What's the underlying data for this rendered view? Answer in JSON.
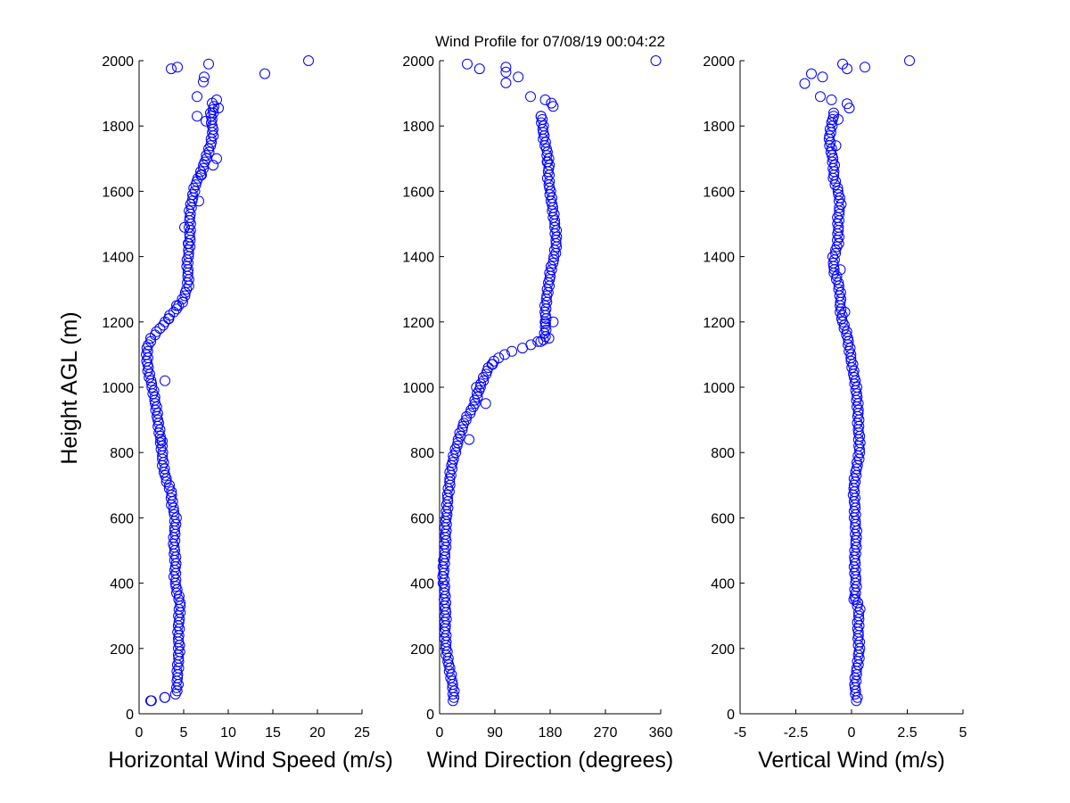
{
  "title": "Wind Profile for  07/08/19 00:04:22",
  "ylabel": "Height AGL (m)",
  "marker_color": "#0000ff",
  "axis_color": "#000000",
  "chart_data": [
    {
      "type": "scatter",
      "xlabel": "Horizontal Wind Speed (m/s)",
      "ylabel": "Height AGL (m)",
      "xlim": [
        0,
        25
      ],
      "ylim": [
        0,
        2000
      ],
      "xticks": [
        0,
        5,
        10,
        15,
        20,
        25
      ],
      "xtick_labels": [
        "0",
        "5",
        "10",
        "15",
        "20",
        "25"
      ],
      "yticks": [
        0,
        200,
        400,
        600,
        800,
        1000,
        1200,
        1400,
        1600,
        1800,
        2000
      ],
      "ytick_labels": [
        "0",
        "200",
        "400",
        "600",
        "800",
        "1000",
        "1200",
        "1400",
        "1600",
        "1800",
        "2000"
      ],
      "profile": [
        [
          40,
          1.3
        ],
        [
          50,
          2.9
        ],
        [
          60,
          4.1
        ],
        [
          80,
          4.3
        ],
        [
          120,
          4.3
        ],
        [
          160,
          4.4
        ],
        [
          200,
          4.5
        ],
        [
          240,
          4.4
        ],
        [
          300,
          4.5
        ],
        [
          340,
          4.6
        ],
        [
          380,
          4.2
        ],
        [
          420,
          4.0
        ],
        [
          460,
          4.1
        ],
        [
          520,
          3.9
        ],
        [
          560,
          4.0
        ],
        [
          600,
          4.1
        ],
        [
          640,
          3.7
        ],
        [
          680,
          3.6
        ],
        [
          720,
          3.0
        ],
        [
          760,
          2.7
        ],
        [
          800,
          2.6
        ],
        [
          840,
          2.4
        ],
        [
          880,
          2.2
        ],
        [
          940,
          1.9
        ],
        [
          1000,
          1.5
        ],
        [
          1040,
          1.1
        ],
        [
          1080,
          0.9
        ],
        [
          1120,
          0.9
        ],
        [
          1150,
          1.4
        ],
        [
          1170,
          2.0
        ],
        [
          1200,
          3.0
        ],
        [
          1220,
          3.5
        ],
        [
          1240,
          4.2
        ],
        [
          1260,
          4.8
        ],
        [
          1290,
          5.2
        ],
        [
          1310,
          5.5
        ],
        [
          1340,
          5.5
        ],
        [
          1380,
          5.4
        ],
        [
          1420,
          5.6
        ],
        [
          1460,
          5.7
        ],
        [
          1500,
          5.7
        ],
        [
          1540,
          5.7
        ],
        [
          1580,
          6.0
        ],
        [
          1620,
          6.3
        ],
        [
          1660,
          7.0
        ],
        [
          1700,
          7.5
        ],
        [
          1740,
          8.0
        ],
        [
          1780,
          8.3
        ],
        [
          1820,
          8.1
        ],
        [
          1860,
          8.4
        ]
      ],
      "points": [
        [
          1.3,
          40
        ],
        [
          2.9,
          50
        ],
        [
          6.5,
          1830
        ],
        [
          7.5,
          1815
        ],
        [
          8.0,
          1840
        ],
        [
          6.5,
          1890
        ],
        [
          7.2,
          1935
        ],
        [
          7.3,
          1950
        ],
        [
          7.8,
          1990
        ],
        [
          3.6,
          1975
        ],
        [
          4.3,
          1980
        ],
        [
          14.1,
          1960
        ],
        [
          19.0,
          2000
        ],
        [
          8.2,
          1870
        ],
        [
          8.9,
          1855
        ],
        [
          8.7,
          1880
        ],
        [
          8.7,
          1700
        ],
        [
          8.3,
          1680
        ],
        [
          7.0,
          1650
        ],
        [
          6.7,
          1570
        ],
        [
          5.5,
          1440
        ],
        [
          5.1,
          1490
        ],
        [
          4.2,
          1250
        ],
        [
          3.3,
          1210
        ],
        [
          2.9,
          1020
        ],
        [
          2.6,
          835
        ]
      ]
    },
    {
      "type": "scatter",
      "xlabel": "Wind Direction (degrees)",
      "ylabel": "",
      "xlim": [
        0,
        360
      ],
      "ylim": [
        0,
        2000
      ],
      "xticks": [
        0,
        90,
        180,
        270,
        360
      ],
      "xtick_labels": [
        "0",
        "90",
        "180",
        "270",
        "360"
      ],
      "yticks": [
        0,
        200,
        400,
        600,
        800,
        1000,
        1200,
        1400,
        1600,
        1800,
        2000
      ],
      "ytick_labels": [
        "0",
        "200",
        "400",
        "600",
        "800",
        "1000",
        "1200",
        "1400",
        "1600",
        "1800",
        "2000"
      ],
      "profile": [
        [
          40,
          22
        ],
        [
          60,
          23
        ],
        [
          80,
          22
        ],
        [
          100,
          20
        ],
        [
          140,
          16
        ],
        [
          180,
          12
        ],
        [
          220,
          10
        ],
        [
          260,
          9
        ],
        [
          300,
          10
        ],
        [
          340,
          9
        ],
        [
          380,
          8
        ],
        [
          420,
          6
        ],
        [
          460,
          7
        ],
        [
          500,
          9
        ],
        [
          540,
          10
        ],
        [
          580,
          10
        ],
        [
          620,
          12
        ],
        [
          660,
          13
        ],
        [
          700,
          16
        ],
        [
          740,
          18
        ],
        [
          780,
          22
        ],
        [
          820,
          28
        ],
        [
          860,
          34
        ],
        [
          900,
          42
        ],
        [
          940,
          55
        ],
        [
          980,
          62
        ],
        [
          1020,
          70
        ],
        [
          1060,
          80
        ],
        [
          1090,
          95
        ],
        [
          1110,
          118
        ],
        [
          1130,
          150
        ],
        [
          1145,
          170
        ],
        [
          1165,
          172
        ],
        [
          1200,
          173
        ],
        [
          1240,
          172
        ],
        [
          1280,
          175
        ],
        [
          1320,
          178
        ],
        [
          1360,
          181
        ],
        [
          1400,
          187
        ],
        [
          1440,
          190
        ],
        [
          1480,
          189
        ],
        [
          1520,
          186
        ],
        [
          1560,
          183
        ],
        [
          1600,
          180
        ],
        [
          1640,
          177
        ],
        [
          1680,
          178
        ],
        [
          1720,
          175
        ],
        [
          1760,
          170
        ],
        [
          1800,
          168
        ],
        [
          1830,
          165
        ]
      ],
      "points": [
        [
          45,
          1990
        ],
        [
          65,
          1975
        ],
        [
          108,
          1980
        ],
        [
          108,
          1965
        ],
        [
          108,
          1932
        ],
        [
          128,
          1950
        ],
        [
          148,
          1890
        ],
        [
          172,
          1880
        ],
        [
          182,
          1870
        ],
        [
          185,
          1860
        ],
        [
          352,
          2000
        ],
        [
          48,
          840
        ],
        [
          178,
          1150
        ],
        [
          185,
          1200
        ],
        [
          160,
          1140
        ],
        [
          165,
          1830
        ],
        [
          175,
          1690
        ],
        [
          60,
          1000
        ],
        [
          85,
          1070
        ],
        [
          75,
          950
        ]
      ]
    },
    {
      "type": "scatter",
      "xlabel": "Vertical Wind (m/s)",
      "ylabel": "",
      "xlim": [
        -5,
        5
      ],
      "ylim": [
        0,
        2000
      ],
      "xticks": [
        -5,
        -2.5,
        0,
        2.5,
        5
      ],
      "xtick_labels": [
        "-5",
        "-2.5",
        "0",
        "2.5",
        "5"
      ],
      "yticks": [
        0,
        200,
        400,
        600,
        800,
        1000,
        1200,
        1400,
        1600,
        1800,
        2000
      ],
      "ytick_labels": [
        "0",
        "200",
        "400",
        "600",
        "800",
        "1000",
        "1200",
        "1400",
        "1600",
        "1800",
        "2000"
      ],
      "profile": [
        [
          40,
          0.25
        ],
        [
          80,
          0.15
        ],
        [
          120,
          0.2
        ],
        [
          160,
          0.3
        ],
        [
          200,
          0.35
        ],
        [
          240,
          0.3
        ],
        [
          280,
          0.3
        ],
        [
          320,
          0.35
        ],
        [
          360,
          0.15
        ],
        [
          400,
          0.2
        ],
        [
          440,
          0.15
        ],
        [
          480,
          0.15
        ],
        [
          520,
          0.2
        ],
        [
          560,
          0.2
        ],
        [
          600,
          0.15
        ],
        [
          640,
          0.15
        ],
        [
          680,
          0.1
        ],
        [
          720,
          0.15
        ],
        [
          760,
          0.25
        ],
        [
          800,
          0.35
        ],
        [
          840,
          0.35
        ],
        [
          880,
          0.3
        ],
        [
          920,
          0.3
        ],
        [
          960,
          0.25
        ],
        [
          1000,
          0.2
        ],
        [
          1040,
          0.1
        ],
        [
          1080,
          0.0
        ],
        [
          1120,
          -0.1
        ],
        [
          1160,
          -0.2
        ],
        [
          1200,
          -0.4
        ],
        [
          1240,
          -0.5
        ],
        [
          1280,
          -0.5
        ],
        [
          1320,
          -0.6
        ],
        [
          1360,
          -0.8
        ],
        [
          1400,
          -0.8
        ],
        [
          1440,
          -0.6
        ],
        [
          1480,
          -0.6
        ],
        [
          1520,
          -0.6
        ],
        [
          1560,
          -0.5
        ],
        [
          1600,
          -0.6
        ],
        [
          1640,
          -0.8
        ],
        [
          1680,
          -0.8
        ],
        [
          1720,
          -0.9
        ],
        [
          1760,
          -1.0
        ],
        [
          1800,
          -0.9
        ],
        [
          1840,
          -0.8
        ]
      ],
      "points": [
        [
          -2.1,
          1930
        ],
        [
          -1.8,
          1960
        ],
        [
          -1.3,
          1950
        ],
        [
          -1.4,
          1890
        ],
        [
          -0.9,
          1880
        ],
        [
          -0.4,
          1990
        ],
        [
          -0.2,
          1975
        ],
        [
          0.6,
          1980
        ],
        [
          2.6,
          2000
        ],
        [
          -0.1,
          1855
        ],
        [
          -0.2,
          1868
        ],
        [
          0.1,
          350
        ],
        [
          -0.6,
          1820
        ],
        [
          -0.3,
          1230
        ],
        [
          -0.5,
          1360
        ],
        [
          -0.7,
          1740
        ]
      ]
    }
  ]
}
